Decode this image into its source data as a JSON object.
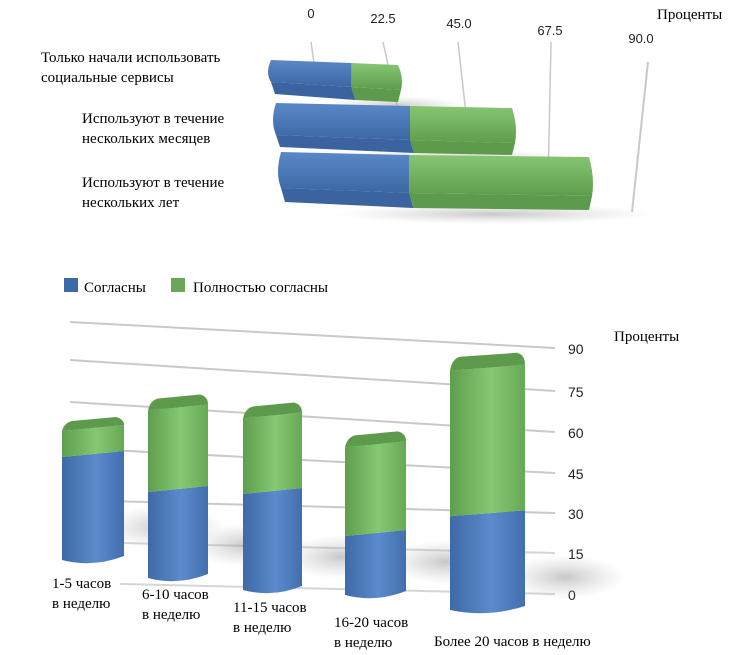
{
  "colors": {
    "blue": "#4f7fc0",
    "blue_dark": "#3a63a0",
    "green": "#7cbf68",
    "green_dark": "#5d9a4c",
    "grid": "#cccccc"
  },
  "legend": {
    "items": [
      {
        "label": "Согласны",
        "color": "#3c6aa8"
      },
      {
        "label": "Полностью согласны",
        "color": "#6aa75a"
      }
    ]
  },
  "chart_data": [
    {
      "type": "bar",
      "orientation": "horizontal",
      "stacked": true,
      "ylabel": "Проценты",
      "xlim": [
        0,
        90
      ],
      "ticks": [
        "0",
        "22.5",
        "45.0",
        "67.5",
        "90.0"
      ],
      "categories": [
        [
          "Только начали использовать",
          "социальные сервисы"
        ],
        [
          "Используют в течение",
          "нескольких месяцев"
        ],
        [
          "Используют в течение",
          "нескольких лет"
        ]
      ],
      "series": [
        {
          "name": "Согласны",
          "values": [
            23,
            35,
            34
          ]
        },
        {
          "name": "Полностью согласны",
          "values": [
            14,
            27,
            47
          ]
        }
      ],
      "grid": true,
      "legend_position": "bottom-left"
    },
    {
      "type": "bar",
      "orientation": "vertical",
      "stacked": true,
      "ylabel": "Проценты",
      "ylim": [
        0,
        90
      ],
      "ticks": [
        "0",
        "15",
        "30",
        "45",
        "60",
        "75",
        "90"
      ],
      "categories": [
        [
          "1-5 часов",
          "в неделю"
        ],
        [
          "6-10 часов",
          "в неделю"
        ],
        [
          "11-15 часов",
          "в неделю"
        ],
        [
          "16-20 часов",
          "в неделю"
        ],
        [
          "Более 20 часов в неделю"
        ]
      ],
      "series": [
        {
          "name": "Согласны",
          "values": [
            35,
            32,
            37,
            23,
            33
          ]
        },
        {
          "name": "Полностью согласны",
          "values": [
            12,
            34,
            33,
            38,
            55
          ]
        }
      ],
      "grid": true,
      "legend_position": "top-left"
    }
  ]
}
